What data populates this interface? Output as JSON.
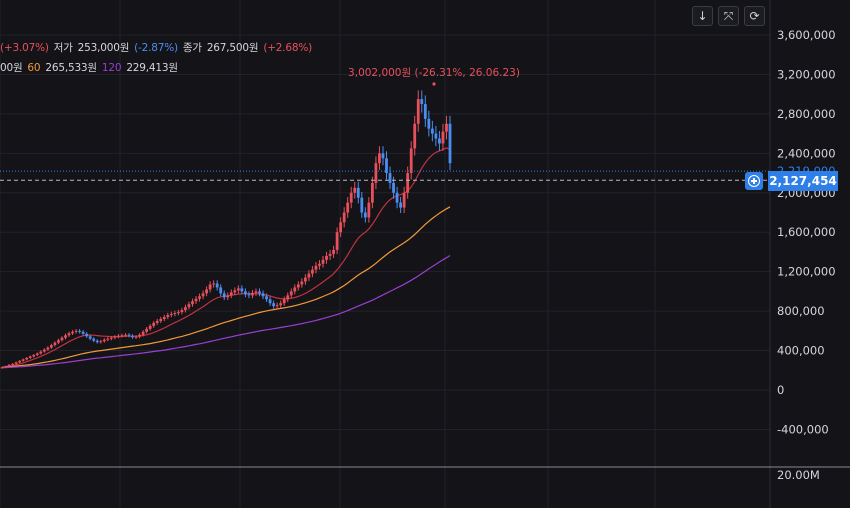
{
  "legend": {
    "line1": [
      {
        "text": "(+3.07%)",
        "tone": "up"
      },
      {
        "text": "저가",
        "tone": "lbl"
      },
      {
        "text": "253,000원",
        "tone": "lbl"
      },
      {
        "text": "(-2.87%)",
        "tone": "down"
      },
      {
        "text": "종가",
        "tone": "lbl"
      },
      {
        "text": "267,500원",
        "tone": "lbl"
      },
      {
        "text": "(+2.68%)",
        "tone": "up"
      }
    ],
    "line2": [
      {
        "text": "00원",
        "tone": "lbl"
      },
      {
        "text": "60",
        "tone": "ma60"
      },
      {
        "text": "265,533원",
        "tone": "lbl"
      },
      {
        "text": "120",
        "tone": "ma120"
      },
      {
        "text": "229,413원",
        "tone": "lbl"
      }
    ]
  },
  "toolbar": {
    "icons": [
      "arrow-down-icon",
      "collapse-icon",
      "refresh-icon"
    ],
    "glyphs": [
      "↓",
      "⤧",
      "⟳"
    ]
  },
  "price_tag": {
    "value": "2,127,454",
    "hidden_value": "2,219,000"
  },
  "chart_data": {
    "type": "candlestick",
    "y_axis": {
      "ticks": [
        "3,600,000",
        "3,200,000",
        "2,800,000",
        "2,400,000",
        "2,000,000",
        "1,600,000",
        "1,200,000",
        "800,000",
        "400,000",
        "0",
        "-400,000"
      ],
      "tick_values": [
        3600000,
        3200000,
        2800000,
        2400000,
        2000000,
        1600000,
        1200000,
        800000,
        400000,
        0,
        -400000
      ],
      "range": [
        -600000,
        3900000
      ],
      "position": "right"
    },
    "volume_axis": {
      "ticks": [
        "20.00M"
      ],
      "tick_values": [
        20000000
      ]
    },
    "max_annotation": {
      "text": "3,002,000원 (-26.31%, 26.06.23)",
      "value": 3100000
    },
    "current_line": 2219000,
    "crosshair_line": 2127454,
    "grid": true,
    "close": [
      230000,
      240000,
      255000,
      265000,
      280000,
      295000,
      310000,
      325000,
      340000,
      355000,
      370000,
      390000,
      410000,
      430000,
      455000,
      480000,
      505000,
      530000,
      555000,
      575000,
      590000,
      600000,
      590000,
      570000,
      545000,
      520000,
      500000,
      485000,
      495000,
      510000,
      520000,
      530000,
      540000,
      550000,
      555000,
      560000,
      550000,
      535000,
      540000,
      560000,
      590000,
      620000,
      650000,
      680000,
      700000,
      720000,
      740000,
      760000,
      770000,
      780000,
      790000,
      810000,
      840000,
      870000,
      900000,
      925000,
      950000,
      980000,
      1020000,
      1070000,
      1080000,
      1040000,
      980000,
      940000,
      960000,
      990000,
      1010000,
      1030000,
      1000000,
      970000,
      960000,
      985000,
      1000000,
      980000,
      950000,
      920000,
      880000,
      850000,
      860000,
      880000,
      920000,
      960000,
      1000000,
      1040000,
      1070000,
      1100000,
      1140000,
      1180000,
      1220000,
      1260000,
      1280000,
      1320000,
      1360000,
      1380000,
      1420000,
      1600000,
      1700000,
      1800000,
      1900000,
      2000000,
      2050000,
      1950000,
      1800000,
      1750000,
      1900000,
      2100000,
      2300000,
      2400000,
      2350000,
      2200000,
      2100000,
      2000000,
      1900000,
      1850000,
      2000000,
      2200000,
      2450000,
      2700000,
      2950000,
      2900000,
      2750000,
      2650000,
      2600000,
      2550000,
      2500000,
      2620000,
      2700000,
      2300000
    ],
    "ma20": [
      230000,
      235000,
      240000,
      247000,
      255000,
      265000,
      275000,
      287000,
      300000,
      313000,
      327000,
      342000,
      357000,
      373000,
      391000,
      410000,
      430000,
      450000,
      470000,
      490000,
      508000,
      525000,
      539000,
      550000,
      556000,
      558000,
      556000,
      552000,
      548000,
      546000,
      544000,
      543000,
      542000,
      542000,
      543000,
      545000,
      546000,
      546000,
      546000,
      548000,
      553000,
      560000,
      570000,
      582000,
      596000,
      612000,
      629000,
      647000,
      665000,
      683000,
      700000,
      718000,
      737000,
      757000,
      778000,
      800000,
      822000,
      845000,
      869000,
      895000,
      918000,
      935000,
      945000,
      950000,
      955000,
      960000,
      966000,
      972000,
      976000,
      978000,
      978000,
      978000,
      977000,
      974000,
      969000,
      962000,
      953000,
      942000,
      933000,
      927000,
      924000,
      925000,
      930000,
      938000,
      949000,
      963000,
      980000,
      1000000,
      1022000,
      1046000,
      1070000,
      1096000,
      1123000,
      1150000,
      1179000,
      1220000,
      1265000,
      1315000,
      1370000,
      1430000,
      1490000,
      1540000,
      1575000,
      1600000,
      1635000,
      1680000,
      1735000,
      1795000,
      1850000,
      1895000,
      1930000,
      1955000,
      1970000,
      1980000,
      1995000,
      2020000,
      2060000,
      2115000,
      2185000,
      2250000,
      2305000,
      2350000,
      2385000,
      2410000,
      2425000,
      2440000,
      2455000,
      2440000
    ],
    "ma60": [
      230000,
      233000,
      236000,
      239000,
      242000,
      246000,
      250000,
      254000,
      258000,
      263000,
      268000,
      274000,
      280000,
      286000,
      293000,
      300000,
      308000,
      316000,
      325000,
      334000,
      343000,
      352000,
      361000,
      369000,
      376000,
      383000,
      389000,
      395000,
      400000,
      405000,
      410000,
      415000,
      420000,
      425000,
      430000,
      435000,
      440000,
      445000,
      449000,
      454000,
      459000,
      465000,
      471000,
      478000,
      485000,
      492000,
      500000,
      508000,
      517000,
      526000,
      535000,
      544000,
      554000,
      564000,
      575000,
      586000,
      597000,
      609000,
      621000,
      634000,
      647000,
      660000,
      672000,
      683000,
      694000,
      705000,
      716000,
      727000,
      737000,
      747000,
      757000,
      767000,
      777000,
      786000,
      794000,
      802000,
      809000,
      815000,
      821000,
      827000,
      833000,
      840000,
      847000,
      855000,
      864000,
      874000,
      884000,
      895000,
      907000,
      920000,
      934000,
      948000,
      963000,
      979000,
      996000,
      1016000,
      1037000,
      1060000,
      1085000,
      1112000,
      1140000,
      1166000,
      1189000,
      1210000,
      1232000,
      1257000,
      1285000,
      1315000,
      1345000,
      1373000,
      1400000,
      1425000,
      1448000,
      1470000,
      1493000,
      1518000,
      1546000,
      1577000,
      1611000,
      1646000,
      1680000,
      1711000,
      1740000,
      1767000,
      1792000,
      1815000,
      1838000,
      1858000
    ],
    "ma120": [
      225000,
      227000,
      229000,
      231000,
      233000,
      235000,
      237000,
      240000,
      243000,
      246000,
      249000,
      252000,
      255000,
      259000,
      263000,
      267000,
      271000,
      275000,
      279000,
      284000,
      289000,
      294000,
      299000,
      304000,
      309000,
      314000,
      319000,
      323000,
      327000,
      331000,
      335000,
      339000,
      343000,
      347000,
      351000,
      355000,
      359000,
      363000,
      367000,
      371000,
      375000,
      380000,
      385000,
      390000,
      395000,
      400000,
      405000,
      411000,
      417000,
      423000,
      429000,
      435000,
      441000,
      448000,
      455000,
      462000,
      469000,
      476000,
      484000,
      492000,
      500000,
      508000,
      516000,
      524000,
      532000,
      540000,
      548000,
      556000,
      563000,
      570000,
      577000,
      584000,
      591000,
      598000,
      604000,
      610000,
      616000,
      622000,
      628000,
      634000,
      640000,
      646000,
      652000,
      659000,
      666000,
      673000,
      681000,
      689000,
      697000,
      706000,
      715000,
      724000,
      734000,
      744000,
      754000,
      766000,
      778000,
      791000,
      805000,
      820000,
      836000,
      851000,
      866000,
      880000,
      895000,
      911000,
      928000,
      946000,
      964000,
      982000,
      1000000,
      1018000,
      1036000,
      1054000,
      1072000,
      1092000,
      1112000,
      1134000,
      1157000,
      1181000,
      1205000,
      1229000,
      1252000,
      1275000,
      1298000,
      1320000,
      1342000,
      1364000
    ]
  }
}
